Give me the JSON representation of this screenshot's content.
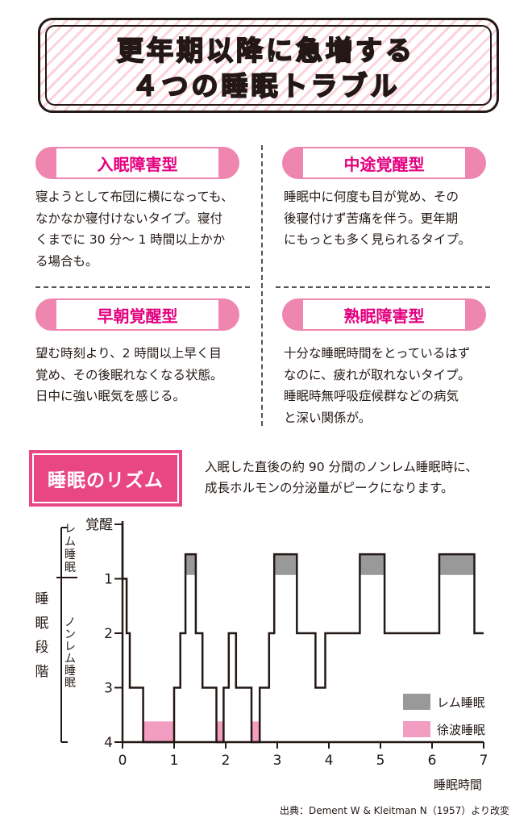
{
  "title": {
    "line1": "更年期以降に急増する",
    "line2": "４つの睡眠トラブル"
  },
  "troubles": [
    {
      "name": "入眠障害型",
      "lines": [
        "寝ようとして布団に横になっても、",
        "なかなか寝付けないタイプ。寝付",
        "くまでに 30 分～ 1 時間以上かか",
        "る場合も。"
      ]
    },
    {
      "name": "中途覚醒型",
      "lines": [
        "睡眠中に何度も目が覚め、その",
        "後寝付けず苦痛を伴う。更年期",
        "にもっとも多く見られるタイプ。"
      ]
    },
    {
      "name": "早朝覚醒型",
      "lines": [
        "望む時刻より、2 時間以上早く目",
        "覚め、その後眠れなくなる状態。",
        "日中に強い眠気を感じる。"
      ]
    },
    {
      "name": "熟眠障害型",
      "lines": [
        "十分な睡眠時間をとっているはず",
        "なのに、疲れが取れないタイプ。",
        "睡眠時無呼吸症候群などの病気",
        "と深い関係が。"
      ]
    }
  ],
  "rhythm": {
    "label": "睡眠のリズム",
    "lines": [
      "入眠した直後の約 90 分間のノンレム睡眠時に、",
      "成長ホルモンの分泌量がピークになります。"
    ]
  },
  "chart_data": {
    "type": "line",
    "title": "",
    "xlabel": "睡眠時間",
    "ylabel": "睡眠段階",
    "xlim": [
      0,
      7
    ],
    "ylim": [
      4,
      0
    ],
    "x_ticks": [
      "0",
      "1",
      "2",
      "3",
      "4",
      "5",
      "6",
      "7"
    ],
    "y_ticks": [
      {
        "value": 0,
        "label": "覚醒"
      },
      {
        "value": 1,
        "label": "1"
      },
      {
        "value": 2,
        "label": "2"
      },
      {
        "value": 3,
        "label": "3"
      },
      {
        "value": 4,
        "label": "4"
      }
    ],
    "stage_groups": [
      {
        "label": "レム睡眠",
        "from": 0,
        "to": 1
      },
      {
        "label": "ノンレム睡眠",
        "from": 1,
        "to": 4
      }
    ],
    "hypnogram": [
      [
        0.0,
        0
      ],
      [
        0.0,
        1
      ],
      [
        0.08,
        1
      ],
      [
        0.08,
        2
      ],
      [
        0.14,
        2
      ],
      [
        0.14,
        3
      ],
      [
        0.4,
        3
      ],
      [
        0.4,
        4
      ],
      [
        1.0,
        4
      ],
      [
        1.0,
        3
      ],
      [
        1.12,
        3
      ],
      [
        1.12,
        2
      ],
      [
        1.22,
        2
      ],
      [
        1.22,
        0.55
      ],
      [
        1.42,
        0.55
      ],
      [
        1.42,
        2
      ],
      [
        1.55,
        2
      ],
      [
        1.55,
        3
      ],
      [
        1.82,
        3
      ],
      [
        1.82,
        4
      ],
      [
        1.96,
        4
      ],
      [
        1.96,
        3
      ],
      [
        2.06,
        3
      ],
      [
        2.06,
        2
      ],
      [
        2.2,
        2
      ],
      [
        2.2,
        3
      ],
      [
        2.5,
        3
      ],
      [
        2.5,
        4
      ],
      [
        2.66,
        4
      ],
      [
        2.66,
        3
      ],
      [
        2.84,
        3
      ],
      [
        2.84,
        2
      ],
      [
        2.94,
        2
      ],
      [
        2.94,
        0.55
      ],
      [
        3.38,
        0.55
      ],
      [
        3.38,
        2
      ],
      [
        3.74,
        2
      ],
      [
        3.74,
        3
      ],
      [
        3.93,
        3
      ],
      [
        3.93,
        2
      ],
      [
        4.6,
        2
      ],
      [
        4.6,
        0.55
      ],
      [
        5.08,
        0.55
      ],
      [
        5.08,
        2
      ],
      [
        6.14,
        2
      ],
      [
        6.14,
        0.55
      ],
      [
        6.82,
        0.55
      ],
      [
        6.82,
        2
      ],
      [
        7.0,
        2
      ]
    ],
    "series": [
      {
        "name": "レム睡眠",
        "color": "#999999",
        "segments": [
          [
            1.22,
            1.42
          ],
          [
            2.94,
            3.38
          ],
          [
            4.6,
            5.08
          ],
          [
            6.14,
            6.82
          ]
        ],
        "y_range": [
          0.55,
          0.93
        ]
      },
      {
        "name": "徐波睡眠",
        "color": "#f19ec2",
        "segments": [
          [
            0.4,
            1.0
          ],
          [
            1.82,
            1.96
          ],
          [
            2.5,
            2.66
          ]
        ],
        "y_range": [
          3.62,
          4
        ]
      }
    ],
    "grid": false,
    "legend": "bottom-right"
  },
  "source": "出典：Dement W & Kleitman N（1957）より改変"
}
